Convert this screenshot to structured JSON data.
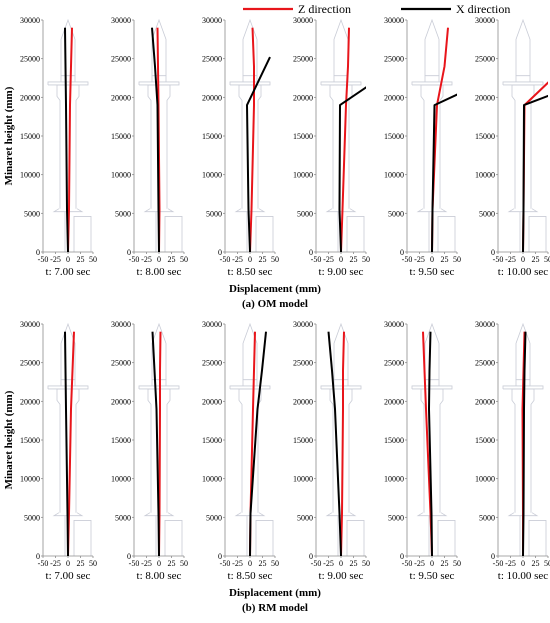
{
  "legend": {
    "z_label": "Z direction",
    "x_label": "X direction",
    "z_color": "#e8151b",
    "x_color": "#000000"
  },
  "panels": [
    {
      "caption": "(a) OM model",
      "ylabel": "Minaret height (mm)",
      "xlabel": "Displacement (mm)"
    },
    {
      "caption": "(b) RM model",
      "ylabel": "Minaret height (mm)",
      "xlabel": "Displacement (mm)"
    }
  ],
  "x_tick_labels": [
    "-50",
    "-25",
    "0",
    "25",
    "50"
  ],
  "y_tick_labels": [
    "0",
    "5000",
    "10000",
    "15000",
    "20000",
    "25000",
    "30000"
  ],
  "chart_data": [
    {
      "type": "line",
      "model": "OM model",
      "xlabel": "Displacement (mm)",
      "ylabel": "Minaret height (mm)",
      "xlim": [
        -50,
        50
      ],
      "ylim": [
        0,
        30000
      ],
      "xticks": [
        -50,
        -25,
        0,
        25,
        50
      ],
      "yticks": [
        0,
        5000,
        10000,
        15000,
        20000,
        25000,
        30000
      ],
      "subplots": [
        {
          "caption": "t: 7.00 sec",
          "z": [
            [
              0,
              0
            ],
            [
              2,
              5500
            ],
            [
              4,
              19000
            ],
            [
              6,
              24000
            ],
            [
              8,
              29000
            ]
          ],
          "x": [
            [
              0,
              0
            ],
            [
              -2,
              5500
            ],
            [
              -4,
              19000
            ],
            [
              -5,
              24000
            ],
            [
              -6,
              29000
            ]
          ]
        },
        {
          "caption": "t: 8.00 sec",
          "z": [
            [
              0,
              0
            ],
            [
              1,
              5500
            ],
            [
              -1,
              19000
            ],
            [
              -2,
              24000
            ],
            [
              -3,
              29000
            ]
          ],
          "x": [
            [
              0,
              0
            ],
            [
              -1,
              5500
            ],
            [
              -3,
              19000
            ],
            [
              -8,
              24000
            ],
            [
              -14,
              29000
            ]
          ]
        },
        {
          "caption": "t: 8.50 sec",
          "z": [
            [
              0,
              0
            ],
            [
              3,
              5500
            ],
            [
              8,
              19000
            ],
            [
              8,
              24000
            ],
            [
              5,
              29000
            ]
          ],
          "x": [
            [
              0,
              0
            ],
            [
              -3,
              5500
            ],
            [
              -6,
              19000
            ],
            [
              40,
              25200
            ]
          ]
        },
        {
          "caption": "t: 9.00 sec",
          "z": [
            [
              0,
              0
            ],
            [
              3,
              5500
            ],
            [
              10,
              19000
            ],
            [
              14,
              24000
            ],
            [
              16,
              29000
            ]
          ],
          "x": [
            [
              0,
              0
            ],
            [
              -3,
              5500
            ],
            [
              -2,
              19000
            ],
            [
              55,
              21500
            ]
          ]
        },
        {
          "caption": "t: 9.50 sec",
          "z": [
            [
              0,
              0
            ],
            [
              1,
              5500
            ],
            [
              10,
              19000
            ],
            [
              25,
              24000
            ],
            [
              32,
              29000
            ]
          ],
          "x": [
            [
              0,
              0
            ],
            [
              1,
              5500
            ],
            [
              5,
              19000
            ],
            [
              55,
              20500
            ]
          ]
        },
        {
          "caption": "t: 10.00 sec",
          "z": [
            [
              0,
              0
            ],
            [
              1,
              5500
            ],
            [
              3,
              19000
            ],
            [
              55,
              22200
            ]
          ],
          "x": [
            [
              0,
              0
            ],
            [
              1,
              5500
            ],
            [
              2,
              19000
            ],
            [
              55,
              20300
            ]
          ]
        }
      ]
    },
    {
      "type": "line",
      "model": "RM model",
      "xlabel": "Displacement (mm)",
      "ylabel": "Minaret height (mm)",
      "xlim": [
        -50,
        50
      ],
      "ylim": [
        0,
        30000
      ],
      "xticks": [
        -50,
        -25,
        0,
        25,
        50
      ],
      "yticks": [
        0,
        5000,
        10000,
        15000,
        20000,
        25000,
        30000
      ],
      "subplots": [
        {
          "caption": "t: 7.00 sec",
          "z": [
            [
              0,
              0
            ],
            [
              2,
              5500
            ],
            [
              6,
              19000
            ],
            [
              9,
              24000
            ],
            [
              12,
              29000
            ]
          ],
          "x": [
            [
              0,
              0
            ],
            [
              -1,
              5500
            ],
            [
              -4,
              19000
            ],
            [
              -5,
              24000
            ],
            [
              -6,
              29000
            ]
          ]
        },
        {
          "caption": "t: 8.00 sec",
          "z": [
            [
              0,
              0
            ],
            [
              1,
              5500
            ],
            [
              2,
              19000
            ],
            [
              2,
              24000
            ],
            [
              3,
              29000
            ]
          ],
          "x": [
            [
              0,
              0
            ],
            [
              -1,
              5500
            ],
            [
              -5,
              19000
            ],
            [
              -9,
              24000
            ],
            [
              -13,
              29000
            ]
          ]
        },
        {
          "caption": "t: 8.50 sec",
          "z": [
            [
              0,
              0
            ],
            [
              1,
              5500
            ],
            [
              6,
              19000
            ],
            [
              8,
              24000
            ],
            [
              10,
              29000
            ]
          ],
          "x": [
            [
              0,
              0
            ],
            [
              1,
              5500
            ],
            [
              15,
              19000
            ],
            [
              24,
              24000
            ],
            [
              32,
              29000
            ]
          ]
        },
        {
          "caption": "t: 9.00 sec",
          "z": [
            [
              0,
              0
            ],
            [
              2,
              5500
            ],
            [
              4,
              19000
            ],
            [
              4,
              24000
            ],
            [
              6,
              29000
            ]
          ],
          "x": [
            [
              0,
              0
            ],
            [
              -3,
              5500
            ],
            [
              -12,
              19000
            ],
            [
              -18,
              24000
            ],
            [
              -25,
              29000
            ]
          ]
        },
        {
          "caption": "t: 9.50 sec",
          "z": [
            [
              0,
              0
            ],
            [
              -3,
              5500
            ],
            [
              -12,
              19000
            ],
            [
              -15,
              24000
            ],
            [
              -18,
              29000
            ]
          ],
          "x": [
            [
              0,
              0
            ],
            [
              -1,
              5500
            ],
            [
              -6,
              19000
            ],
            [
              -5,
              24000
            ],
            [
              -3,
              29000
            ]
          ]
        },
        {
          "caption": "t: 10.00 sec",
          "z": [
            [
              0,
              0
            ],
            [
              0,
              5500
            ],
            [
              -1,
              19000
            ],
            [
              1,
              24000
            ],
            [
              3,
              29000
            ]
          ],
          "x": [
            [
              0,
              0
            ],
            [
              1,
              5500
            ],
            [
              2,
              19000
            ],
            [
              3,
              24000
            ],
            [
              5,
              29000
            ]
          ]
        }
      ]
    }
  ]
}
